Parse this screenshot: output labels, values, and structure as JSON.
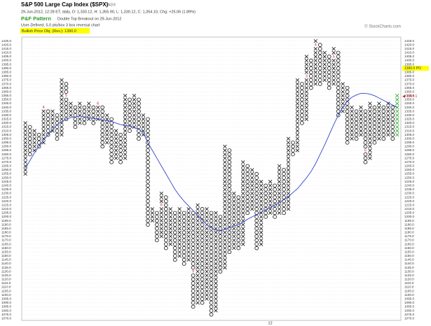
{
  "chart_data": {
    "type": "pnf",
    "title": "S&P 500 Large Cap Index ($SPX)",
    "exchange": "INDX",
    "subtitle": "29-Jun-2012, 12:28 ET, daily, O: 1,330.12, H: 1,355.90, L: 1,330.12, C: 1,354.10, Chg: +25.06 (1.89%)",
    "pattern_label": "P&F Pattern",
    "pattern": "Double Top Breakout on 29-Jun-2012",
    "settings": "User-Defined, 5.0 pts/box 3 box reversal chart",
    "price_objective_text": "Bullish Price Obj. (Rev.): 1390.0",
    "credit": "© StockCharts.com",
    "box_size": 5,
    "x_color": "#111111",
    "o_color": "#111111",
    "current_color": "#22aa22",
    "marker_color": "#cc2222",
    "ma_color": "#3344cc",
    "grid": true,
    "ylim": [
      1067.5,
      1430
    ],
    "yticks": [
      {
        "value": 1425,
        "label": "1425.0"
      },
      {
        "value": 1420,
        "label": "1420.0"
      },
      {
        "value": 1415,
        "label": "1415.0"
      },
      {
        "value": 1410,
        "label": "1410.0"
      },
      {
        "value": 1405,
        "label": "1405.0"
      },
      {
        "value": 1400,
        "label": "1400.0"
      },
      {
        "value": 1395,
        "label": "1395.0"
      },
      {
        "value": 1390,
        "label": "1390.0"
      },
      {
        "value": 1385,
        "label": "1385.0"
      },
      {
        "value": 1380,
        "label": "1380.0"
      },
      {
        "value": 1375,
        "label": "1375.0"
      },
      {
        "value": 1370,
        "label": "1370.0"
      },
      {
        "value": 1365,
        "label": "1365.0"
      },
      {
        "value": 1360,
        "label": "1360.0"
      },
      {
        "value": 1355,
        "label": "1355.0"
      },
      {
        "value": 1350,
        "label": "1350.0"
      },
      {
        "value": 1345,
        "label": "1345.0"
      },
      {
        "value": 1340,
        "label": "1340.0"
      },
      {
        "value": 1335,
        "label": "1335.0"
      },
      {
        "value": 1330,
        "label": "1330.0"
      },
      {
        "value": 1325,
        "label": "1325.0"
      },
      {
        "value": 1320,
        "label": "1320.0"
      },
      {
        "value": 1315,
        "label": "1315.0"
      },
      {
        "value": 1310,
        "label": "1310.0"
      },
      {
        "value": 1305,
        "label": "1305.0"
      },
      {
        "value": 1300,
        "label": "1300.0"
      },
      {
        "value": 1295,
        "label": "1295.0"
      },
      {
        "value": 1290,
        "label": "1290.0"
      },
      {
        "value": 1285,
        "label": "1285.0"
      },
      {
        "value": 1280,
        "label": "1280.0"
      },
      {
        "value": 1275,
        "label": "1275.0"
      },
      {
        "value": 1270,
        "label": "1270.0"
      },
      {
        "value": 1265,
        "label": "1265.0"
      },
      {
        "value": 1260,
        "label": "1260.0"
      },
      {
        "value": 1255,
        "label": "1255.0"
      },
      {
        "value": 1250,
        "label": "1250.0"
      },
      {
        "value": 1245,
        "label": "1245.0"
      },
      {
        "value": 1240,
        "label": "1240.0"
      },
      {
        "value": 1235,
        "label": "1235.0"
      },
      {
        "value": 1230,
        "label": "1230.0"
      },
      {
        "value": 1225,
        "label": "1225.0"
      },
      {
        "value": 1220,
        "label": "1220.0"
      },
      {
        "value": 1215,
        "label": "1215.0"
      },
      {
        "value": 1210,
        "label": "1210.0"
      },
      {
        "value": 1205,
        "label": "1205.0"
      },
      {
        "value": 1200,
        "label": "1200.0"
      },
      {
        "value": 1195,
        "label": "1195.0"
      },
      {
        "value": 1190,
        "label": "1190.0"
      },
      {
        "value": 1185,
        "label": "1185.0"
      },
      {
        "value": 1180,
        "label": "1180.0"
      },
      {
        "value": 1175,
        "label": "1175.0"
      },
      {
        "value": 1170,
        "label": "1170.0"
      },
      {
        "value": 1165,
        "label": "1165.0"
      },
      {
        "value": 1160,
        "label": "1160.0"
      },
      {
        "value": 1155,
        "label": "1155.0"
      },
      {
        "value": 1150,
        "label": "1150.0"
      },
      {
        "value": 1145,
        "label": "1145.0"
      },
      {
        "value": 1140,
        "label": "1140.0"
      },
      {
        "value": 1135,
        "label": "1135.0"
      },
      {
        "value": 1130,
        "label": "1130.0"
      },
      {
        "value": 1125,
        "label": "1125.0"
      },
      {
        "value": 1120,
        "label": "1120.0"
      },
      {
        "value": 1115,
        "label": "1115.0"
      },
      {
        "value": 1110,
        "label": "1110.0"
      },
      {
        "value": 1105,
        "label": "1105.0"
      },
      {
        "value": 1100,
        "label": "1100.0"
      },
      {
        "value": 1095,
        "label": "1095.0"
      },
      {
        "value": 1090,
        "label": "1090.0"
      },
      {
        "value": 1085,
        "label": "1085.0"
      },
      {
        "value": 1080,
        "label": "1080.0"
      },
      {
        "value": 1075,
        "label": "1075.0"
      },
      {
        "value": 1070,
        "label": "1070.0"
      }
    ],
    "columns": [
      {
        "box": "X",
        "low": 1255,
        "high": 1320
      },
      {
        "box": "O",
        "low": 1280,
        "high": 1315
      },
      {
        "box": "X",
        "low": 1285,
        "high": 1310
      },
      {
        "box": "O",
        "low": 1290,
        "high": 1305
      },
      {
        "box": "X",
        "low": 1295,
        "high": 1340
      },
      {
        "box": "O",
        "low": 1305,
        "high": 1335
      },
      {
        "box": "X",
        "low": 1310,
        "high": 1335
      },
      {
        "box": "O",
        "low": 1300,
        "high": 1330
      },
      {
        "box": "X",
        "low": 1305,
        "high": 1375
      },
      {
        "box": "O",
        "low": 1325,
        "high": 1370
      },
      {
        "box": "X",
        "low": 1330,
        "high": 1345
      },
      {
        "box": "O",
        "low": 1315,
        "high": 1340
      },
      {
        "box": "X",
        "low": 1320,
        "high": 1345
      },
      {
        "box": "O",
        "low": 1320,
        "high": 1340
      },
      {
        "box": "X",
        "low": 1325,
        "high": 1345
      },
      {
        "box": "O",
        "low": 1320,
        "high": 1340
      },
      {
        "box": "X",
        "low": 1325,
        "high": 1345
      },
      {
        "box": "O",
        "low": 1290,
        "high": 1340
      },
      {
        "box": "X",
        "low": 1295,
        "high": 1330
      },
      {
        "box": "O",
        "low": 1270,
        "high": 1325
      },
      {
        "box": "X",
        "low": 1275,
        "high": 1310
      },
      {
        "box": "O",
        "low": 1270,
        "high": 1305
      },
      {
        "box": "X",
        "low": 1275,
        "high": 1355
      },
      {
        "box": "O",
        "low": 1310,
        "high": 1350
      },
      {
        "box": "X",
        "low": 1315,
        "high": 1355
      },
      {
        "box": "O",
        "low": 1300,
        "high": 1350
      },
      {
        "box": "X",
        "low": 1305,
        "high": 1330
      },
      {
        "box": "O",
        "low": 1190,
        "high": 1325
      },
      {
        "box": "X",
        "low": 1195,
        "high": 1210
      },
      {
        "box": "O",
        "low": 1170,
        "high": 1205
      },
      {
        "box": "X",
        "low": 1175,
        "high": 1230
      },
      {
        "box": "O",
        "low": 1160,
        "high": 1225
      },
      {
        "box": "X",
        "low": 1165,
        "high": 1210
      },
      {
        "box": "O",
        "low": 1145,
        "high": 1205
      },
      {
        "box": "X",
        "low": 1150,
        "high": 1210
      },
      {
        "box": "O",
        "low": 1140,
        "high": 1205
      },
      {
        "box": "X",
        "low": 1145,
        "high": 1210
      },
      {
        "box": "O",
        "low": 1085,
        "high": 1205
      },
      {
        "box": "X",
        "low": 1090,
        "high": 1215
      },
      {
        "box": "O",
        "low": 1090,
        "high": 1210
      },
      {
        "box": "X",
        "low": 1095,
        "high": 1210
      },
      {
        "box": "O",
        "low": 1075,
        "high": 1205
      },
      {
        "box": "X",
        "low": 1080,
        "high": 1205
      },
      {
        "box": "O",
        "low": 1130,
        "high": 1200
      },
      {
        "box": "X",
        "low": 1135,
        "high": 1290
      },
      {
        "box": "O",
        "low": 1155,
        "high": 1285
      },
      {
        "box": "X",
        "low": 1160,
        "high": 1230
      },
      {
        "box": "O",
        "low": 1160,
        "high": 1225
      },
      {
        "box": "X",
        "low": 1165,
        "high": 1270
      },
      {
        "box": "O",
        "low": 1205,
        "high": 1265
      },
      {
        "box": "X",
        "low": 1210,
        "high": 1260
      },
      {
        "box": "O",
        "low": 1160,
        "high": 1255
      },
      {
        "box": "X",
        "low": 1165,
        "high": 1245
      },
      {
        "box": "O",
        "low": 1200,
        "high": 1240
      },
      {
        "box": "X",
        "low": 1205,
        "high": 1245
      },
      {
        "box": "O",
        "low": 1200,
        "high": 1240
      },
      {
        "box": "X",
        "low": 1205,
        "high": 1265
      },
      {
        "box": "O",
        "low": 1205,
        "high": 1260
      },
      {
        "box": "X",
        "low": 1210,
        "high": 1300
      },
      {
        "box": "O",
        "low": 1280,
        "high": 1295
      },
      {
        "box": "X",
        "low": 1285,
        "high": 1375
      },
      {
        "box": "O",
        "low": 1320,
        "high": 1370
      },
      {
        "box": "X",
        "low": 1325,
        "high": 1405
      },
      {
        "box": "O",
        "low": 1365,
        "high": 1400
      },
      {
        "box": "X",
        "low": 1370,
        "high": 1425
      },
      {
        "box": "O",
        "low": 1370,
        "high": 1420
      },
      {
        "box": "X",
        "low": 1375,
        "high": 1410
      },
      {
        "box": "O",
        "low": 1365,
        "high": 1405
      },
      {
        "box": "X",
        "low": 1370,
        "high": 1415
      },
      {
        "box": "O",
        "low": 1330,
        "high": 1410
      },
      {
        "box": "X",
        "low": 1335,
        "high": 1370
      },
      {
        "box": "O",
        "low": 1295,
        "high": 1365
      },
      {
        "box": "X",
        "low": 1300,
        "high": 1340
      },
      {
        "box": "O",
        "low": 1300,
        "high": 1335
      },
      {
        "box": "X",
        "low": 1305,
        "high": 1340
      },
      {
        "box": "O",
        "low": 1270,
        "high": 1335
      },
      {
        "box": "X",
        "low": 1275,
        "high": 1345
      },
      {
        "box": "O",
        "low": 1295,
        "high": 1340
      },
      {
        "box": "X",
        "low": 1300,
        "high": 1345
      },
      {
        "box": "O",
        "low": 1300,
        "high": 1340
      },
      {
        "box": "X",
        "low": 1305,
        "high": 1345
      },
      {
        "box": "O",
        "low": 1300,
        "high": 1340
      },
      {
        "box": "X",
        "low": 1305,
        "high": 1355
      }
    ],
    "ma_values": [
      1262,
      1272,
      1282,
      1290,
      1298,
      1305,
      1312,
      1318,
      1322,
      1325,
      1327,
      1328,
      1329,
      1328,
      1327,
      1326,
      1325,
      1324,
      1323,
      1322,
      1320,
      1318,
      1317,
      1316,
      1314,
      1312,
      1308,
      1295,
      1285,
      1275,
      1265,
      1255,
      1245,
      1235,
      1227,
      1220,
      1214,
      1208,
      1202,
      1196,
      1190,
      1186,
      1183,
      1182,
      1184,
      1186,
      1188,
      1190,
      1193,
      1197,
      1200,
      1203,
      1206,
      1209,
      1212,
      1215,
      1218,
      1222,
      1226,
      1231,
      1236,
      1243,
      1250,
      1258,
      1268,
      1280,
      1292,
      1305,
      1318,
      1330,
      1340,
      1348,
      1353,
      1356,
      1358,
      1358,
      1357,
      1355,
      1352,
      1349,
      1346,
      1343,
      1340
    ],
    "markers": [
      {
        "col": 4,
        "price": 1340,
        "label": "4"
      },
      {
        "col": 9,
        "price": 1355,
        "label": "5"
      },
      {
        "col": 16,
        "price": 1345,
        "label": "6"
      },
      {
        "col": 30,
        "price": 1215,
        "label": "8"
      },
      {
        "col": 37,
        "price": 1130,
        "label": "9"
      },
      {
        "col": 62,
        "price": 1380,
        "label": "3"
      },
      {
        "col": 64,
        "price": 1420,
        "label": "4"
      },
      {
        "col": 68,
        "price": 1405,
        "label": "5"
      },
      {
        "col": 75,
        "price": 1285,
        "label": "6"
      }
    ],
    "x_labels": [
      {
        "col": 54,
        "label": "12"
      }
    ],
    "last_price": 1354.1,
    "price_objective": {
      "value": 1390,
      "label": "1390.0 PO"
    }
  }
}
